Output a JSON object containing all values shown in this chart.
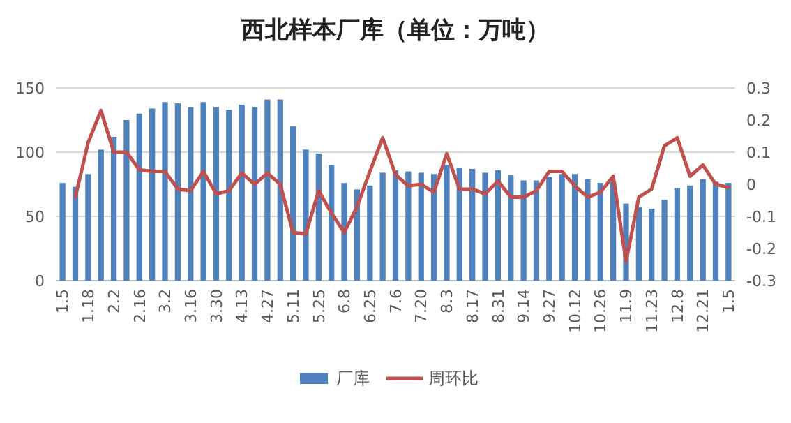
{
  "chart_data": {
    "type": "bar",
    "title": "西北样本厂库（单位：万吨）",
    "categories": [
      "1.5",
      null,
      "1.18",
      null,
      "2.2",
      null,
      "2.16",
      null,
      "3.2",
      null,
      "3.16",
      null,
      "3.30",
      null,
      "4.13",
      null,
      "4.27",
      null,
      "5.11",
      null,
      "5.25",
      null,
      "6.8",
      null,
      "6.25",
      null,
      "7.6",
      null,
      "7.20",
      null,
      "8.3",
      null,
      "8.17",
      null,
      "8.31",
      null,
      "9.14",
      null,
      "9.27",
      null,
      "10.12",
      null,
      "10.26",
      null,
      "11.9",
      null,
      "11.23",
      null,
      "12.8",
      null,
      "12.21",
      null,
      "1.5"
    ],
    "series": [
      {
        "name": "厂库",
        "color": "#4f81bd",
        "values": [
          76,
          73,
          83,
          102,
          112,
          125,
          130,
          134,
          139,
          138,
          135,
          139,
          135,
          133,
          137,
          135,
          141,
          141,
          120,
          102,
          99,
          90,
          76,
          71,
          74,
          84,
          86,
          85,
          84,
          83,
          90,
          88,
          87,
          84,
          86,
          82,
          78,
          78,
          81,
          83,
          83,
          79,
          76,
          77,
          60,
          57,
          56,
          63,
          72,
          74,
          79,
          77,
          76
        ]
      },
      {
        "name": "周环比",
        "type": "line",
        "axis": "y2",
        "color": "#c0504d",
        "values": [
          null,
          -0.04,
          0.13,
          0.23,
          0.1,
          0.1,
          0.045,
          0.04,
          0.04,
          -0.015,
          -0.02,
          0.04,
          -0.03,
          -0.02,
          0.035,
          0,
          0.035,
          0,
          -0.15,
          -0.155,
          -0.02,
          -0.09,
          -0.15,
          -0.07,
          0.04,
          0.145,
          0.03,
          -0.005,
          0,
          -0.025,
          0.095,
          -0.015,
          -0.015,
          -0.03,
          0.01,
          -0.04,
          -0.04,
          -0.02,
          0.04,
          0.04,
          -0.005,
          -0.04,
          -0.025,
          0.025,
          -0.24,
          -0.04,
          -0.015,
          0.12,
          0.145,
          0.025,
          0.06,
          0,
          -0.01
        ]
      }
    ],
    "ylim": [
      0,
      150
    ],
    "yticks": [
      0,
      50,
      100,
      150
    ],
    "y2lim": [
      -0.3,
      0.3
    ],
    "y2ticks": [
      -0.3,
      -0.2,
      -0.1,
      0,
      0.1,
      0.2,
      0.3
    ],
    "grid": "y",
    "legend": "bottom",
    "marker": "none",
    "line_style": "solid"
  }
}
